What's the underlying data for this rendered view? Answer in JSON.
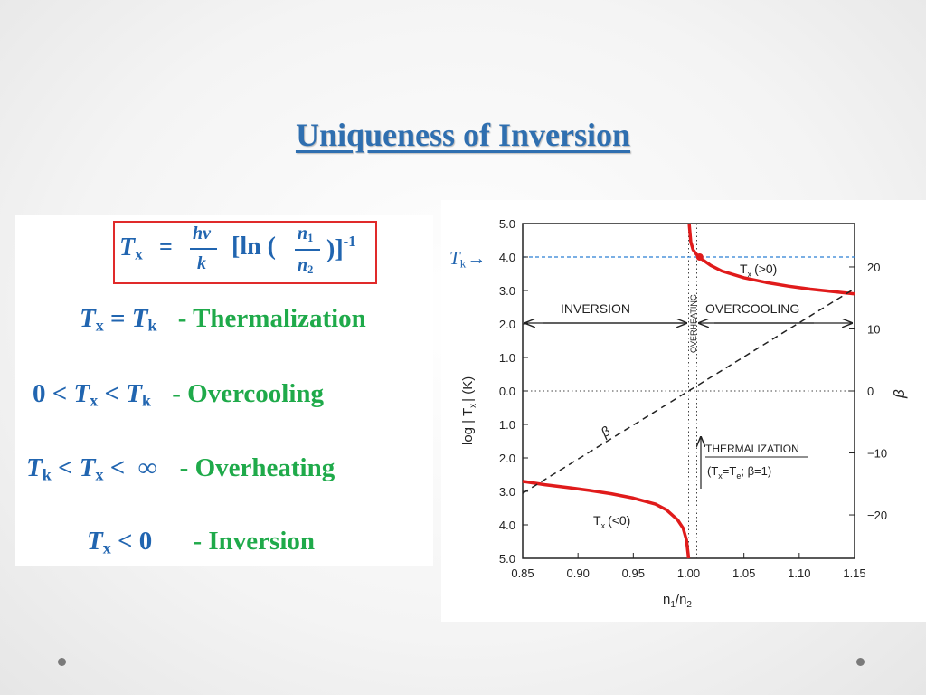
{
  "slide": {
    "title": "Uniqueness of Inversion"
  },
  "formula": {
    "lhs": "T",
    "lhs_sub": "x",
    "equals": "=",
    "frac1_num": "hν",
    "frac1_den": "k",
    "ln_open": "[ln (",
    "frac2_num": "n",
    "frac2_num_sub": "1",
    "frac2_den": "n",
    "frac2_den_sub": "2",
    "close": ")]",
    "exponent": "-1"
  },
  "regimes": [
    {
      "cond_pre": "",
      "cond_a": "T",
      "cond_a_sub": "x",
      "cond_mid": " = ",
      "cond_b": "T",
      "cond_b_sub": "k",
      "cond_post": "",
      "label": "- Thermalization"
    },
    {
      "cond_pre": "0 < ",
      "cond_a": "T",
      "cond_a_sub": "x",
      "cond_mid": " < ",
      "cond_b": "T",
      "cond_b_sub": "k",
      "cond_post": "",
      "label": "- Overcooling"
    },
    {
      "cond_pre": "",
      "cond_a": "T",
      "cond_a_sub": "k",
      "cond_mid": " < ",
      "cond_b": "T",
      "cond_b_sub": "x",
      "cond_post": " <  ∞",
      "label": "- Overheating"
    },
    {
      "cond_pre": "",
      "cond_a": "T",
      "cond_a_sub": "x",
      "cond_mid": " < 0",
      "cond_b": "",
      "cond_b_sub": "",
      "cond_post": "",
      "label": "- Inversion"
    }
  ],
  "chart_marker": {
    "text": "T",
    "sub": "k",
    "arrow": "→"
  },
  "chart_data": {
    "type": "line",
    "x_ticks": [
      "0.85",
      "0.90",
      "0.95",
      "1.00",
      "1.05",
      "1.10",
      "1.15"
    ],
    "x_tick_values": [
      0.85,
      0.9,
      0.95,
      1.0,
      1.05,
      1.1,
      1.15
    ],
    "xlim": [
      0.85,
      1.15
    ],
    "xlabel": "n1/n2",
    "xlabel_main": "n",
    "xlabel_sub1": "1",
    "xlabel_slash": "/n",
    "xlabel_sub2": "2",
    "y_ticks_left": [
      "5.0",
      "4.0",
      "3.0",
      "2.0",
      "1.0",
      "0.0",
      "1.0",
      "2.0",
      "3.0",
      "4.0",
      "5.0"
    ],
    "y_tick_values": [
      5,
      4,
      3,
      2,
      1,
      0,
      -1,
      -2,
      -3,
      -4,
      -5
    ],
    "ylim": [
      -5,
      5
    ],
    "ylabel": "log | Tx | (K)",
    "ylabel_pre": "log  |  T",
    "ylabel_sub": "x",
    "ylabel_post": "|  (K)",
    "y_ticks_right": [
      "20",
      "10",
      "0",
      "−10",
      "−20"
    ],
    "y_right_values": [
      20,
      10,
      0,
      -10,
      -20
    ],
    "ylim_right": [
      -27,
      27
    ],
    "ylabel_right": "β",
    "tk_level": 4.0,
    "thermalization_x": 1.0,
    "annotations": {
      "inversion": "INVERSION",
      "overcooling": "OVERCOOLING",
      "overheating": "OVERHEATING",
      "tx_pos": "T",
      "tx_pos_sub": "x",
      "tx_pos_rest": "(>0)",
      "tx_neg": "T",
      "tx_neg_sub": "x",
      "tx_neg_rest": "(<0)",
      "beta": "β",
      "thermalization": "THERMALIZATION",
      "therm_cond": "(T",
      "therm_cond_sub1": "x",
      "therm_cond_mid": "=T",
      "therm_cond_sub2": "e",
      "therm_cond_rest": ";  β=1)"
    },
    "series": [
      {
        "name": "Tx (>0)",
        "color": "#e01b1b",
        "x": [
          1.0005,
          1.002,
          1.004,
          1.007,
          1.01,
          1.02,
          1.03,
          1.05,
          1.07,
          1.09,
          1.11,
          1.13,
          1.15
        ],
        "y": [
          5.0,
          4.45,
          4.22,
          4.08,
          3.98,
          3.75,
          3.58,
          3.38,
          3.24,
          3.13,
          3.04,
          2.97,
          2.9
        ]
      },
      {
        "name": "Tx (<0)",
        "color": "#e01b1b",
        "x": [
          0.85,
          0.87,
          0.89,
          0.91,
          0.93,
          0.95,
          0.97,
          0.98,
          0.99,
          0.995,
          0.998,
          1.0
        ],
        "y": [
          -2.7,
          -2.8,
          -2.88,
          -2.97,
          -3.07,
          -3.2,
          -3.38,
          -3.55,
          -3.85,
          -4.1,
          -4.45,
          -5.0
        ]
      },
      {
        "name": "β",
        "color": "#222222",
        "dashed": true,
        "beta_x": [
          0.85,
          1.15
        ],
        "beta_y": [
          -16.5,
          16.5
        ]
      }
    ],
    "highlight_point": {
      "x": 1.01,
      "y": 4.0
    }
  },
  "nav_dots": [
    "left-dot",
    "right-dot"
  ]
}
